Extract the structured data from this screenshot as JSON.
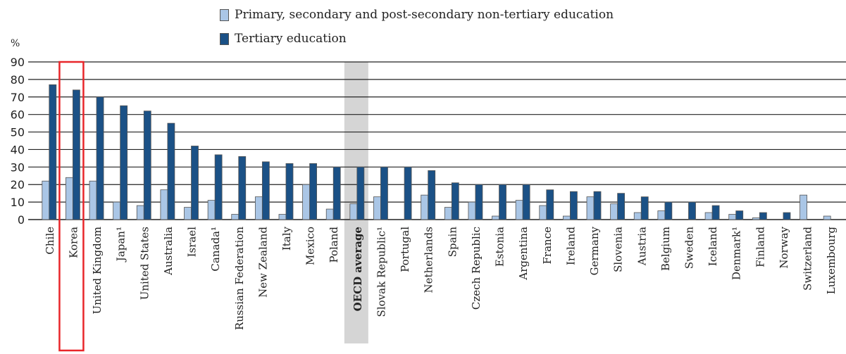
{
  "chart_data": {
    "type": "bar",
    "ylabel": "%",
    "ylim": [
      0,
      90
    ],
    "yticks": [
      0,
      10,
      20,
      30,
      40,
      50,
      60,
      70,
      80,
      90
    ],
    "grid": true,
    "legend_position": "top",
    "highlight_category": "Korea",
    "shaded_category": "OECD average",
    "categories": [
      "Chile",
      "Korea",
      "United Kingdom",
      "Japan¹",
      "United States",
      "Australia",
      "Israel",
      "Canada¹",
      "Russian Federation",
      "New Zealand",
      "Italy",
      "Mexico",
      "Poland",
      "OECD average",
      "Slovak Republic¹",
      "Portugal",
      "Netherlands",
      "Spain",
      "Czech Republic",
      "Estonia",
      "Argentina",
      "France",
      "Ireland",
      "Germany",
      "Slovenia",
      "Austria",
      "Belgium",
      "Sweden",
      "Iceland",
      "Denmark¹",
      "Finland",
      "Norway",
      "Switzerland",
      "Luxembourg"
    ],
    "series": [
      {
        "name": "Primary, secondary and post-secondary non-tertiary education",
        "color": "#aac6e6",
        "values": [
          22,
          24,
          22,
          10,
          8,
          17,
          7,
          11,
          3,
          13,
          3,
          20,
          6,
          9,
          13,
          0,
          14,
          7,
          10,
          2,
          11,
          8,
          2,
          13,
          9,
          4,
          5,
          0,
          4,
          3,
          1,
          0,
          14,
          2
        ]
      },
      {
        "name": "Tertiary education",
        "color": "#1b5186",
        "values": [
          77,
          74,
          70,
          65,
          62,
          55,
          42,
          37,
          36,
          33,
          32,
          32,
          30,
          30,
          30,
          30,
          28,
          21,
          20,
          20,
          20,
          17,
          16,
          16,
          15,
          13,
          10,
          10,
          8,
          5,
          4,
          4,
          0,
          0
        ]
      }
    ]
  }
}
